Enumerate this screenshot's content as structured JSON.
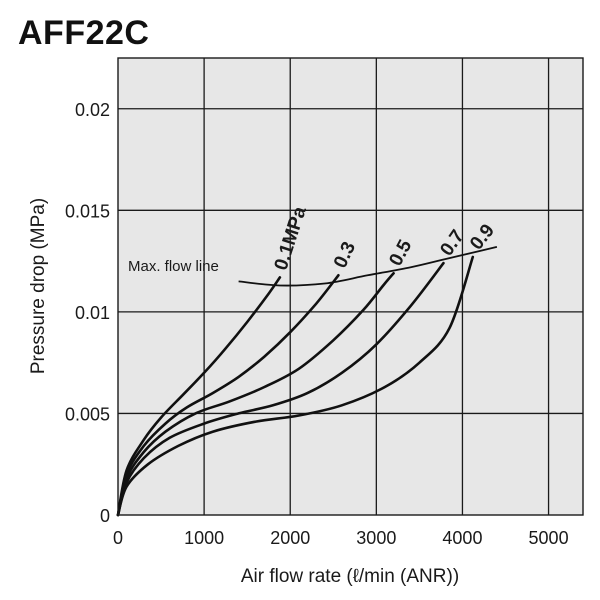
{
  "chart_data": {
    "type": "line",
    "title": "AFF22C",
    "xlabel": "Air flow rate (ℓ/min (ANR))",
    "ylabel": "Pressure drop (MPa)",
    "xlim": [
      0,
      5400
    ],
    "ylim": [
      0,
      0.0225
    ],
    "xticks": [
      0,
      1000,
      2000,
      3000,
      4000,
      5000
    ],
    "xtick_labels": [
      "0",
      "1000",
      "2000",
      "3000",
      "4000",
      "5000"
    ],
    "yticks": [
      0,
      0.005,
      0.01,
      0.015,
      0.02
    ],
    "ytick_labels": [
      "0",
      "0.005",
      "0.01",
      "0.015",
      "0.02"
    ],
    "grid": true,
    "series": [
      {
        "name": "0.1MPa",
        "label_angle": -72,
        "points": [
          [
            0,
            0
          ],
          [
            100,
            0.0022
          ],
          [
            300,
            0.0037
          ],
          [
            500,
            0.0048
          ],
          [
            750,
            0.0059
          ],
          [
            1000,
            0.007
          ],
          [
            1250,
            0.0082
          ],
          [
            1500,
            0.0095
          ],
          [
            1750,
            0.0109
          ],
          [
            1880,
            0.0117
          ]
        ]
      },
      {
        "name": "0.3",
        "label_angle": -65,
        "points": [
          [
            0,
            0
          ],
          [
            100,
            0.002
          ],
          [
            300,
            0.0034
          ],
          [
            550,
            0.0045
          ],
          [
            800,
            0.0053
          ],
          [
            1100,
            0.006
          ],
          [
            1400,
            0.0068
          ],
          [
            1700,
            0.0078
          ],
          [
            2000,
            0.009
          ],
          [
            2300,
            0.0104
          ],
          [
            2560,
            0.0118
          ]
        ]
      },
      {
        "name": "0.5",
        "label_angle": -62,
        "points": [
          [
            0,
            0
          ],
          [
            100,
            0.0018
          ],
          [
            300,
            0.0031
          ],
          [
            550,
            0.0041
          ],
          [
            900,
            0.005
          ],
          [
            1300,
            0.0056
          ],
          [
            1700,
            0.0063
          ],
          [
            2100,
            0.0072
          ],
          [
            2500,
            0.0086
          ],
          [
            2850,
            0.0101
          ],
          [
            3080,
            0.0113
          ],
          [
            3200,
            0.0119
          ]
        ]
      },
      {
        "name": "0.7",
        "label_angle": -55,
        "points": [
          [
            0,
            0
          ],
          [
            100,
            0.0016
          ],
          [
            300,
            0.0028
          ],
          [
            600,
            0.0038
          ],
          [
            1000,
            0.0045
          ],
          [
            1400,
            0.005
          ],
          [
            1800,
            0.0054
          ],
          [
            2200,
            0.006
          ],
          [
            2600,
            0.007
          ],
          [
            3000,
            0.0084
          ],
          [
            3400,
            0.0103
          ],
          [
            3780,
            0.0124
          ]
        ]
      },
      {
        "name": "0.9",
        "label_angle": -52,
        "points": [
          [
            0,
            0
          ],
          [
            100,
            0.0014
          ],
          [
            350,
            0.0025
          ],
          [
            700,
            0.0034
          ],
          [
            1100,
            0.0041
          ],
          [
            1600,
            0.0046
          ],
          [
            2100,
            0.0049
          ],
          [
            2600,
            0.0054
          ],
          [
            3100,
            0.0063
          ],
          [
            3500,
            0.0075
          ],
          [
            3850,
            0.0092
          ],
          [
            4120,
            0.0127
          ]
        ]
      }
    ],
    "max_flow_line": {
      "label": "Max. flow line",
      "points": [
        [
          1400,
          0.0115
        ],
        [
          1880,
          0.0113
        ],
        [
          2400,
          0.0114
        ],
        [
          2900,
          0.0118
        ],
        [
          3400,
          0.0122
        ],
        [
          3800,
          0.0126
        ],
        [
          4200,
          0.013
        ],
        [
          4400,
          0.0132
        ]
      ]
    },
    "colors": {
      "plot_background": "#e7e7e7",
      "grid": "#1a1a1a",
      "line": "#111111"
    }
  }
}
